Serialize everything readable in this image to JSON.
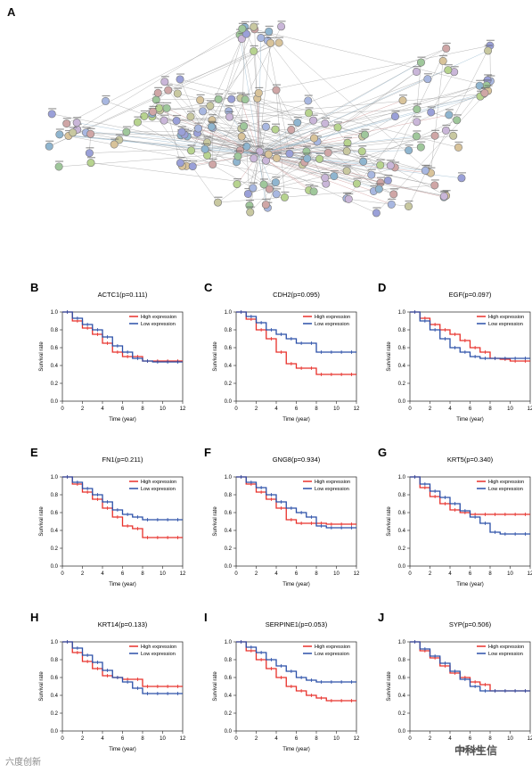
{
  "figure": {
    "panel_a_label": "A",
    "xlabel": "Time (year)",
    "ylabel": "Survival rate",
    "legend_high": "High expression",
    "legend_low": "Low expression",
    "colors": {
      "high": "#e8302a",
      "low": "#2a4fa8",
      "node_edge": "#777777"
    }
  },
  "chart_data": [
    {
      "type": "line",
      "letter": "B",
      "title": "ACTC1(p=0.111)",
      "xlim": [
        0,
        12
      ],
      "ylim": [
        0,
        1
      ],
      "series": [
        {
          "name": "High expression",
          "x": [
            0,
            1,
            2,
            3,
            4,
            5,
            6,
            7,
            8,
            9,
            10,
            11,
            12
          ],
          "y": [
            1,
            0.9,
            0.82,
            0.75,
            0.65,
            0.55,
            0.5,
            0.5,
            0.45,
            0.45,
            0.45,
            0.45,
            0.45
          ]
        },
        {
          "name": "Low expression",
          "x": [
            0,
            1,
            2,
            3,
            4,
            5,
            6,
            7,
            8,
            9,
            10,
            11,
            12
          ],
          "y": [
            1,
            0.93,
            0.86,
            0.8,
            0.72,
            0.62,
            0.55,
            0.48,
            0.45,
            0.44,
            0.44,
            0.44,
            0.44
          ]
        }
      ]
    },
    {
      "type": "line",
      "letter": "C",
      "title": "CDH2(p=0.095)",
      "xlim": [
        0,
        12
      ],
      "ylim": [
        0,
        1
      ],
      "series": [
        {
          "name": "High expression",
          "x": [
            0,
            1,
            2,
            3,
            4,
            5,
            6,
            7,
            8,
            9,
            10,
            11,
            12
          ],
          "y": [
            1,
            0.92,
            0.8,
            0.7,
            0.55,
            0.42,
            0.37,
            0.37,
            0.3,
            0.3,
            0.3,
            0.3,
            0.3
          ]
        },
        {
          "name": "Low expression",
          "x": [
            0,
            1,
            2,
            3,
            4,
            5,
            6,
            7,
            8,
            9,
            10,
            11,
            12
          ],
          "y": [
            1,
            0.95,
            0.88,
            0.8,
            0.75,
            0.7,
            0.65,
            0.65,
            0.55,
            0.55,
            0.55,
            0.55,
            0.55
          ]
        }
      ]
    },
    {
      "type": "line",
      "letter": "D",
      "title": "EGF(p=0.097)",
      "xlim": [
        0,
        12
      ],
      "ylim": [
        0,
        1
      ],
      "series": [
        {
          "name": "High expression",
          "x": [
            0,
            1,
            2,
            3,
            4,
            5,
            6,
            7,
            8,
            9,
            10,
            11,
            12
          ],
          "y": [
            1,
            0.93,
            0.86,
            0.8,
            0.75,
            0.68,
            0.6,
            0.55,
            0.48,
            0.47,
            0.45,
            0.45,
            0.45
          ]
        },
        {
          "name": "Low expression",
          "x": [
            0,
            1,
            2,
            3,
            4,
            5,
            6,
            7,
            8,
            9,
            10,
            11,
            12
          ],
          "y": [
            1,
            0.9,
            0.8,
            0.7,
            0.6,
            0.55,
            0.5,
            0.48,
            0.48,
            0.48,
            0.48,
            0.48,
            0.48
          ]
        }
      ]
    },
    {
      "type": "line",
      "letter": "E",
      "title": "FN1(p=0.211)",
      "xlim": [
        0,
        12
      ],
      "ylim": [
        0,
        1
      ],
      "series": [
        {
          "name": "High expression",
          "x": [
            0,
            1,
            2,
            3,
            4,
            5,
            6,
            7,
            8,
            9,
            10,
            11,
            12
          ],
          "y": [
            1,
            0.92,
            0.83,
            0.75,
            0.65,
            0.55,
            0.45,
            0.42,
            0.32,
            0.32,
            0.32,
            0.32,
            0.32
          ]
        },
        {
          "name": "Low expression",
          "x": [
            0,
            1,
            2,
            3,
            4,
            5,
            6,
            7,
            8,
            9,
            10,
            11,
            12
          ],
          "y": [
            1,
            0.94,
            0.87,
            0.8,
            0.72,
            0.63,
            0.58,
            0.55,
            0.52,
            0.52,
            0.52,
            0.52,
            0.52
          ]
        }
      ]
    },
    {
      "type": "line",
      "letter": "F",
      "title": "GNG8(p=0.934)",
      "xlim": [
        0,
        12
      ],
      "ylim": [
        0,
        1
      ],
      "series": [
        {
          "name": "High expression",
          "x": [
            0,
            1,
            2,
            3,
            4,
            5,
            6,
            7,
            8,
            9,
            10,
            11,
            12
          ],
          "y": [
            1,
            0.92,
            0.83,
            0.75,
            0.65,
            0.52,
            0.48,
            0.48,
            0.48,
            0.47,
            0.47,
            0.47,
            0.47
          ]
        },
        {
          "name": "Low expression",
          "x": [
            0,
            1,
            2,
            3,
            4,
            5,
            6,
            7,
            8,
            9,
            10,
            11,
            12
          ],
          "y": [
            1,
            0.94,
            0.88,
            0.8,
            0.72,
            0.65,
            0.6,
            0.55,
            0.45,
            0.43,
            0.43,
            0.43,
            0.43
          ]
        }
      ]
    },
    {
      "type": "line",
      "letter": "G",
      "title": "KRT5(p=0.340)",
      "xlim": [
        0,
        12
      ],
      "ylim": [
        0,
        1
      ],
      "series": [
        {
          "name": "High expression",
          "x": [
            0,
            1,
            2,
            3,
            4,
            5,
            6,
            7,
            8,
            9,
            10,
            11,
            12
          ],
          "y": [
            1,
            0.88,
            0.78,
            0.7,
            0.63,
            0.6,
            0.58,
            0.58,
            0.58,
            0.58,
            0.58,
            0.58,
            0.58
          ]
        },
        {
          "name": "Low expression",
          "x": [
            0,
            1,
            2,
            3,
            4,
            5,
            6,
            7,
            8,
            9,
            10,
            11,
            12
          ],
          "y": [
            1,
            0.92,
            0.84,
            0.77,
            0.7,
            0.62,
            0.55,
            0.48,
            0.38,
            0.36,
            0.36,
            0.36,
            0.36
          ]
        }
      ]
    },
    {
      "type": "line",
      "letter": "H",
      "title": "KRT14(p=0.133)",
      "xlim": [
        0,
        12
      ],
      "ylim": [
        0,
        1
      ],
      "series": [
        {
          "name": "High expression",
          "x": [
            0,
            1,
            2,
            3,
            4,
            5,
            6,
            7,
            8,
            9,
            10,
            11,
            12
          ],
          "y": [
            1,
            0.88,
            0.78,
            0.7,
            0.62,
            0.6,
            0.58,
            0.58,
            0.5,
            0.5,
            0.5,
            0.5,
            0.5
          ]
        },
        {
          "name": "Low expression",
          "x": [
            0,
            1,
            2,
            3,
            4,
            5,
            6,
            7,
            8,
            9,
            10,
            11,
            12
          ],
          "y": [
            1,
            0.93,
            0.85,
            0.77,
            0.68,
            0.6,
            0.55,
            0.48,
            0.42,
            0.42,
            0.42,
            0.42,
            0.42
          ]
        }
      ]
    },
    {
      "type": "line",
      "letter": "I",
      "title": "SERPINE1(p=0.053)",
      "xlim": [
        0,
        12
      ],
      "ylim": [
        0,
        1
      ],
      "series": [
        {
          "name": "High expression",
          "x": [
            0,
            1,
            2,
            3,
            4,
            5,
            6,
            7,
            8,
            9,
            10,
            11,
            12
          ],
          "y": [
            1,
            0.9,
            0.8,
            0.7,
            0.6,
            0.5,
            0.45,
            0.4,
            0.37,
            0.34,
            0.34,
            0.34,
            0.34
          ]
        },
        {
          "name": "Low expression",
          "x": [
            0,
            1,
            2,
            3,
            4,
            5,
            6,
            7,
            8,
            9,
            10,
            11,
            12
          ],
          "y": [
            1,
            0.94,
            0.88,
            0.8,
            0.73,
            0.67,
            0.6,
            0.57,
            0.55,
            0.55,
            0.55,
            0.55,
            0.55
          ]
        }
      ]
    },
    {
      "type": "line",
      "letter": "J",
      "title": "SYP(p=0.506)",
      "xlim": [
        0,
        12
      ],
      "ylim": [
        0,
        1
      ],
      "series": [
        {
          "name": "High expression",
          "x": [
            0,
            1,
            2,
            3,
            4,
            5,
            6,
            7,
            8,
            9,
            10,
            11,
            12
          ],
          "y": [
            1,
            0.9,
            0.82,
            0.73,
            0.65,
            0.6,
            0.55,
            0.52,
            0.45,
            0.45,
            0.45,
            0.45,
            0.45
          ]
        },
        {
          "name": "Low expression",
          "x": [
            0,
            1,
            2,
            3,
            4,
            5,
            6,
            7,
            8,
            9,
            10,
            11,
            12
          ],
          "y": [
            1,
            0.92,
            0.84,
            0.76,
            0.67,
            0.58,
            0.5,
            0.45,
            0.45,
            0.45,
            0.45,
            0.45,
            0.45
          ]
        }
      ]
    }
  ],
  "watermark": {
    "left": "六度创新",
    "right": "中科生信"
  }
}
